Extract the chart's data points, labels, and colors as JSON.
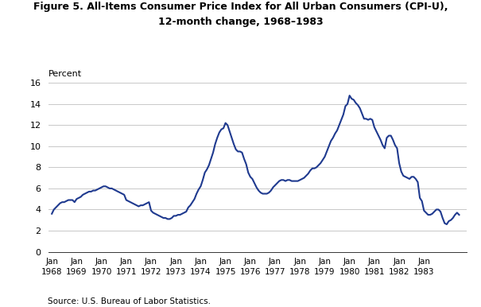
{
  "title_line1": "Figure 5. All-Items Consumer Price Index for All Urban Consumers (CPI-U),",
  "title_line2": "12-month change, 1968–1983",
  "ylabel": "Percent",
  "source": "Source: U.S. Bureau of Labor Statistics.",
  "line_color": "#1f3a8f",
  "line_width": 1.5,
  "ylim": [
    0,
    16
  ],
  "yticks": [
    0,
    2,
    4,
    6,
    8,
    10,
    12,
    14,
    16
  ],
  "background_color": "#ffffff",
  "data": [
    3.6,
    4.0,
    4.2,
    4.4,
    4.6,
    4.7,
    4.7,
    4.8,
    4.9,
    4.9,
    4.9,
    4.7,
    5.0,
    5.1,
    5.2,
    5.4,
    5.5,
    5.6,
    5.7,
    5.7,
    5.8,
    5.8,
    5.9,
    6.0,
    6.1,
    6.2,
    6.2,
    6.1,
    6.0,
    6.0,
    5.9,
    5.8,
    5.7,
    5.6,
    5.5,
    5.4,
    4.9,
    4.8,
    4.7,
    4.6,
    4.5,
    4.4,
    4.3,
    4.4,
    4.4,
    4.5,
    4.6,
    4.7,
    3.9,
    3.7,
    3.6,
    3.5,
    3.4,
    3.3,
    3.2,
    3.2,
    3.1,
    3.1,
    3.2,
    3.4,
    3.4,
    3.5,
    3.5,
    3.6,
    3.7,
    3.8,
    4.2,
    4.4,
    4.7,
    5.0,
    5.5,
    5.9,
    6.2,
    6.8,
    7.5,
    7.8,
    8.2,
    8.8,
    9.4,
    10.2,
    10.8,
    11.3,
    11.6,
    11.7,
    12.2,
    12.0,
    11.4,
    10.8,
    10.2,
    9.7,
    9.5,
    9.5,
    9.4,
    8.8,
    8.3,
    7.5,
    7.1,
    6.9,
    6.5,
    6.1,
    5.8,
    5.6,
    5.5,
    5.5,
    5.5,
    5.6,
    5.8,
    6.1,
    6.3,
    6.5,
    6.7,
    6.8,
    6.8,
    6.7,
    6.8,
    6.8,
    6.7,
    6.7,
    6.7,
    6.7,
    6.8,
    6.9,
    7.0,
    7.2,
    7.4,
    7.7,
    7.9,
    7.9,
    8.0,
    8.2,
    8.4,
    8.7,
    9.0,
    9.5,
    10.0,
    10.5,
    10.8,
    11.2,
    11.5,
    12.0,
    12.5,
    13.0,
    13.8,
    14.0,
    14.8,
    14.5,
    14.4,
    14.1,
    13.9,
    13.6,
    13.1,
    12.6,
    12.6,
    12.5,
    12.6,
    12.5,
    11.8,
    11.4,
    11.0,
    10.6,
    10.1,
    9.8,
    10.8,
    11.0,
    11.0,
    10.6,
    10.1,
    9.8,
    8.4,
    7.6,
    7.2,
    7.1,
    7.0,
    6.9,
    7.1,
    7.1,
    6.9,
    6.6,
    5.1,
    4.8,
    3.9,
    3.7,
    3.5,
    3.5,
    3.6,
    3.8,
    4.0,
    4.0,
    3.8,
    3.2,
    2.7,
    2.6,
    2.9,
    3.0,
    3.2,
    3.5,
    3.7,
    3.5
  ],
  "x_tick_years": [
    1968,
    1969,
    1970,
    1971,
    1972,
    1973,
    1974,
    1975,
    1976,
    1977,
    1978,
    1979,
    1980,
    1981,
    1982,
    1983
  ]
}
